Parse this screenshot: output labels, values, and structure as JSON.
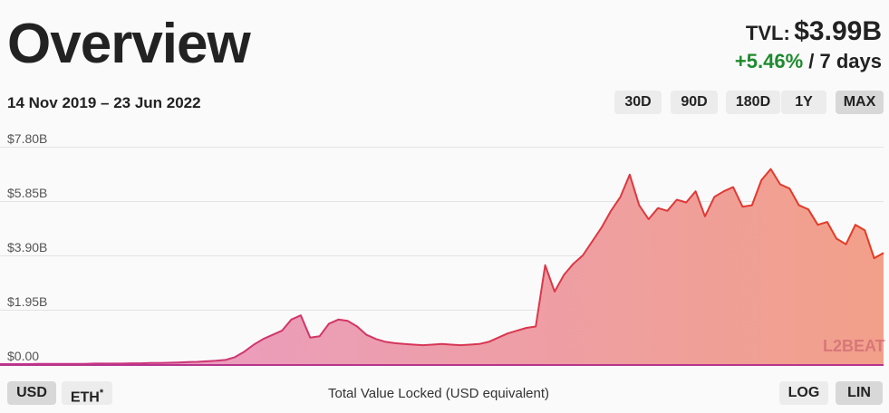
{
  "header": {
    "title": "Overview",
    "tvl_label": "TVL:",
    "tvl_value": "$3.99B",
    "change_pct": "+5.46%",
    "change_period": "/ 7 days",
    "date_range": "14 Nov 2019 – 23 Jun 2022"
  },
  "range_buttons": [
    {
      "label": "30D",
      "active": false
    },
    {
      "label": "90D",
      "active": false
    },
    {
      "label": "180D",
      "active": false
    },
    {
      "label": "1Y",
      "active": false
    },
    {
      "label": "MAX",
      "active": true
    }
  ],
  "currency_buttons": {
    "usd": "USD",
    "eth": "ETH",
    "eth_marker": "*"
  },
  "scale_buttons": {
    "log": "LOG",
    "lin": "LIN"
  },
  "footer_label": "Total Value Locked (USD equivalent)",
  "watermark": "L2BEAT",
  "colors": {
    "accent_start": "#c7348f",
    "accent_end": "#e63a1f",
    "fill_start": "#e89ccc",
    "fill_end": "#f2a08a",
    "positive": "#1f8a2e"
  },
  "chart_data": {
    "type": "area",
    "ylim": [
      0,
      7.8
    ],
    "y_unit": "billion USD",
    "yticks": [
      "$0.00",
      "$1.95B",
      "$3.90B",
      "$5.85B",
      "$7.80B"
    ],
    "x_start": "2019-11-14",
    "x_end": "2022-06-23",
    "scale": "linear",
    "series": [
      {
        "values": [
          0.0,
          0.0,
          0.0,
          0.0,
          0.01,
          0.01,
          0.01,
          0.01,
          0.01,
          0.01,
          0.02,
          0.02,
          0.02,
          0.02,
          0.03,
          0.03,
          0.04,
          0.04,
          0.05,
          0.06,
          0.07,
          0.08,
          0.1,
          0.12,
          0.15,
          0.25,
          0.45,
          0.7,
          0.9,
          1.05,
          1.2,
          1.6,
          1.75,
          0.95,
          1.0,
          1.45,
          1.6,
          1.55,
          1.35,
          1.05,
          0.9,
          0.8,
          0.75,
          0.72,
          0.7,
          0.68,
          0.7,
          0.72,
          0.7,
          0.68,
          0.7,
          0.72,
          0.8,
          0.95,
          1.1,
          1.2,
          1.3,
          1.35,
          3.55,
          2.6,
          3.2,
          3.6,
          3.9,
          4.4,
          4.9,
          5.5,
          6.0,
          6.8,
          5.7,
          5.2,
          5.6,
          5.5,
          5.9,
          5.8,
          6.2,
          5.3,
          6.0,
          6.2,
          6.35,
          5.65,
          5.7,
          6.6,
          7.0,
          6.45,
          6.3,
          5.7,
          5.55,
          5.0,
          5.1,
          4.5,
          4.3,
          5.0,
          4.8,
          3.8,
          3.99
        ]
      }
    ]
  }
}
